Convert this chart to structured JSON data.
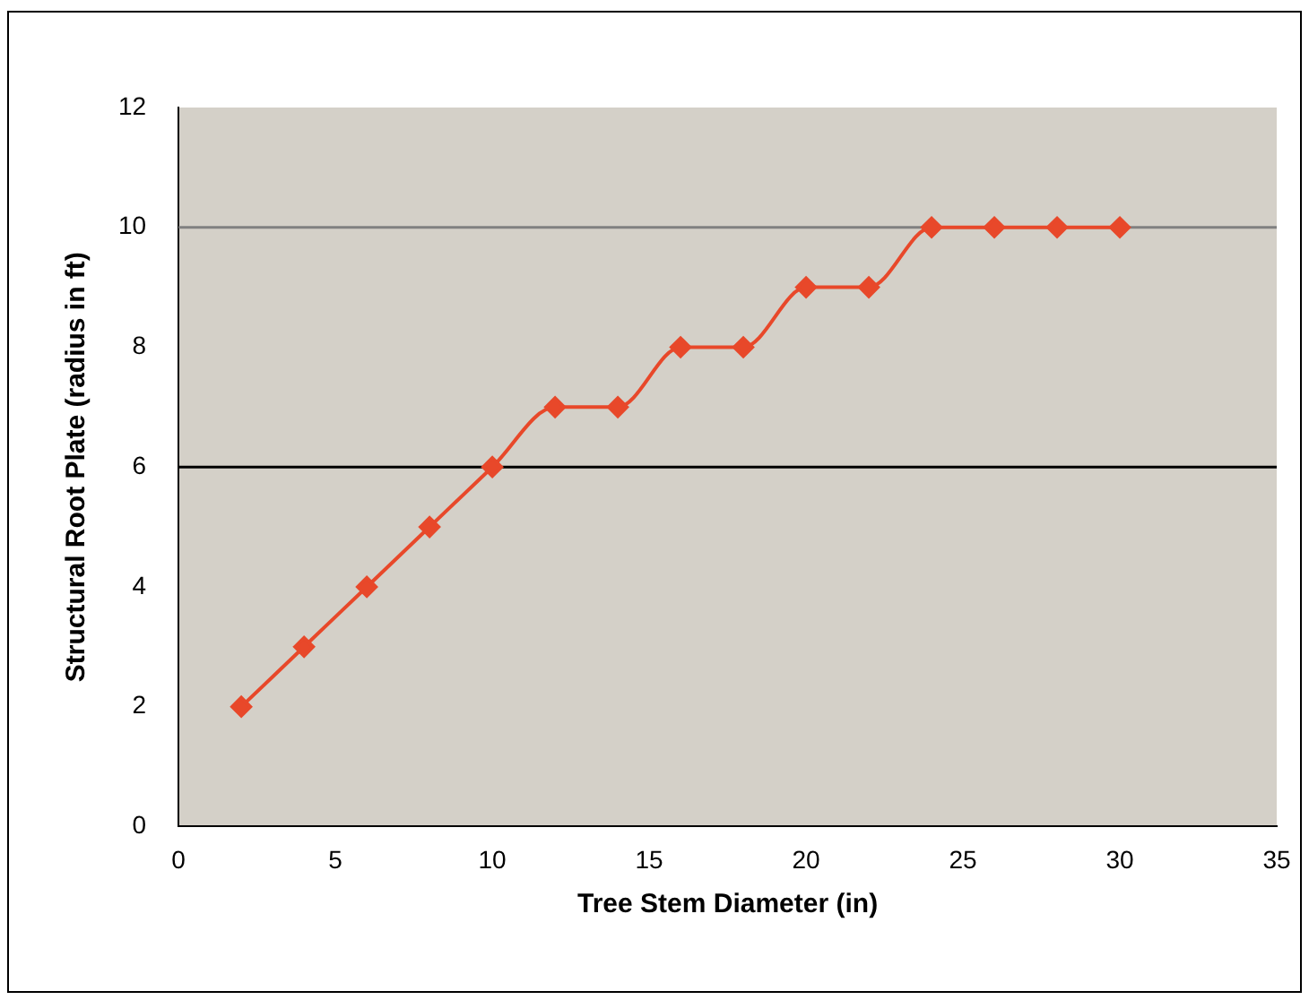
{
  "chart_data": {
    "type": "line",
    "xlabel": "Tree Stem Diameter (in)",
    "ylabel": "Structural Root Plate (radius in ft)",
    "x": [
      2,
      4,
      6,
      8,
      10,
      12,
      14,
      16,
      18,
      20,
      22,
      24,
      26,
      28,
      30
    ],
    "series": [
      {
        "color": "#e8482a",
        "values": [
          2,
          3,
          4,
          5,
          6,
          7,
          7,
          8,
          8,
          9,
          9,
          10,
          10,
          10,
          10
        ]
      }
    ],
    "xlim": [
      0,
      35
    ],
    "xticks": [
      0,
      5,
      10,
      15,
      20,
      25,
      30,
      35
    ],
    "ylim": [
      0,
      12
    ],
    "yticks": [
      0,
      2,
      4,
      6,
      8,
      10,
      12
    ],
    "ref_lines": [
      {
        "axis": "y",
        "value": 10,
        "color": "#808080"
      },
      {
        "axis": "y",
        "value": 6,
        "color": "#000000"
      }
    ],
    "grid": false,
    "legend": false,
    "marker": "diamond",
    "line_style": "solid"
  }
}
